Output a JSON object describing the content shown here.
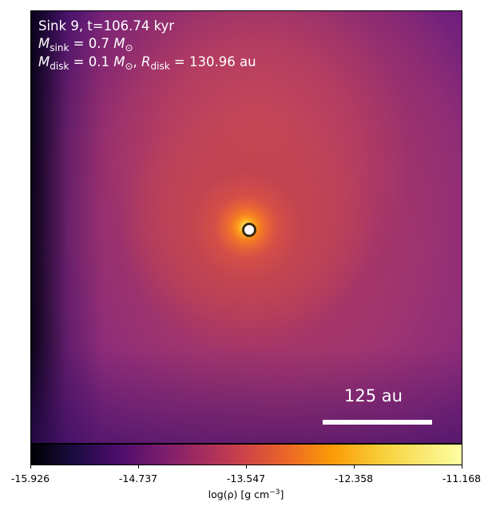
{
  "annotation": {
    "line1": "Sink 9, t=106.74 kyr",
    "m_sink_symbol": "M",
    "m_sink_sub": "sink",
    "m_sink_value": "= 0.7",
    "m_sink_unit": "M",
    "m_sink_unit_sub": "⊙",
    "m_disk_symbol": "M",
    "m_disk_sub": "disk",
    "m_disk_value": "= 0.1",
    "m_disk_unit": "M",
    "m_disk_unit_sub": "⊙",
    "r_disk_symbol": "R",
    "r_disk_sub": "disk",
    "r_disk_value": "= 130.96 au"
  },
  "scalebar": {
    "label": "125 au"
  },
  "colorbar": {
    "colormap": "inferno",
    "ticks": [
      "-15.926",
      "-14.737",
      "-13.547",
      "-12.358",
      "-11.168"
    ],
    "label_main": "log(ρ) [g cm",
    "label_exp": "−3",
    "label_close": "]",
    "range": [
      -15.926,
      -11.168
    ]
  },
  "colors": {
    "text_on_map": "#ffffff",
    "sink_ring": "#3a2a10"
  }
}
